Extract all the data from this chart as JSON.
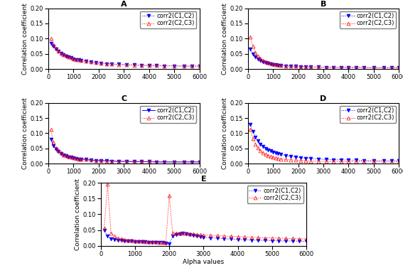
{
  "title_A": "A",
  "title_B": "B",
  "title_C": "C",
  "title_D": "D",
  "title_E": "E",
  "ylabel": "Correlation coefficient",
  "xlabel": "Alpha values",
  "legend1": "corr2(C1,C2)",
  "legend2": "corr2(C2,C3)",
  "xlim": [
    0,
    6000
  ],
  "ylim": [
    0,
    0.2
  ],
  "alpha_values": [
    100,
    200,
    300,
    400,
    500,
    600,
    700,
    800,
    900,
    1000,
    1100,
    1200,
    1300,
    1500,
    1700,
    1900,
    2100,
    2300,
    2500,
    2800,
    3100,
    3400,
    3700,
    4000,
    4300,
    4600,
    5000,
    5400,
    5700,
    6000
  ],
  "A_c12": [
    0.085,
    0.075,
    0.065,
    0.058,
    0.052,
    0.047,
    0.043,
    0.04,
    0.037,
    0.034,
    0.032,
    0.03,
    0.028,
    0.026,
    0.023,
    0.021,
    0.019,
    0.018,
    0.017,
    0.016,
    0.015,
    0.014,
    0.013,
    0.012,
    0.012,
    0.011,
    0.011,
    0.01,
    0.01,
    0.01
  ],
  "A_c23": [
    0.1,
    0.08,
    0.068,
    0.06,
    0.053,
    0.048,
    0.044,
    0.04,
    0.037,
    0.034,
    0.032,
    0.03,
    0.028,
    0.026,
    0.023,
    0.021,
    0.019,
    0.018,
    0.017,
    0.015,
    0.014,
    0.013,
    0.013,
    0.012,
    0.012,
    0.011,
    0.011,
    0.01,
    0.01,
    0.01
  ],
  "B_c12": [
    0.065,
    0.05,
    0.04,
    0.033,
    0.028,
    0.024,
    0.021,
    0.019,
    0.017,
    0.015,
    0.014,
    0.013,
    0.012,
    0.011,
    0.01,
    0.009,
    0.008,
    0.008,
    0.007,
    0.007,
    0.006,
    0.006,
    0.006,
    0.006,
    0.006,
    0.006,
    0.005,
    0.005,
    0.005,
    0.005
  ],
  "B_c23": [
    0.105,
    0.075,
    0.055,
    0.043,
    0.035,
    0.029,
    0.025,
    0.022,
    0.019,
    0.017,
    0.015,
    0.014,
    0.013,
    0.011,
    0.01,
    0.009,
    0.008,
    0.008,
    0.007,
    0.007,
    0.006,
    0.006,
    0.006,
    0.006,
    0.006,
    0.006,
    0.005,
    0.005,
    0.005,
    0.005
  ],
  "C_c12": [
    0.08,
    0.06,
    0.048,
    0.04,
    0.034,
    0.029,
    0.026,
    0.023,
    0.021,
    0.019,
    0.018,
    0.016,
    0.015,
    0.014,
    0.012,
    0.011,
    0.01,
    0.01,
    0.009,
    0.008,
    0.008,
    0.007,
    0.007,
    0.007,
    0.006,
    0.006,
    0.006,
    0.006,
    0.006,
    0.006
  ],
  "C_c23": [
    0.112,
    0.07,
    0.052,
    0.042,
    0.035,
    0.03,
    0.027,
    0.024,
    0.021,
    0.019,
    0.018,
    0.016,
    0.015,
    0.014,
    0.012,
    0.011,
    0.01,
    0.009,
    0.009,
    0.008,
    0.008,
    0.007,
    0.007,
    0.007,
    0.006,
    0.006,
    0.006,
    0.006,
    0.006,
    0.006
  ],
  "D_c12": [
    0.13,
    0.105,
    0.088,
    0.075,
    0.065,
    0.057,
    0.051,
    0.046,
    0.042,
    0.038,
    0.035,
    0.033,
    0.031,
    0.027,
    0.024,
    0.022,
    0.02,
    0.018,
    0.017,
    0.016,
    0.014,
    0.013,
    0.013,
    0.012,
    0.012,
    0.011,
    0.011,
    0.01,
    0.01,
    0.01
  ],
  "D_c23": [
    0.112,
    0.082,
    0.065,
    0.052,
    0.043,
    0.036,
    0.031,
    0.027,
    0.024,
    0.021,
    0.019,
    0.018,
    0.016,
    0.014,
    0.013,
    0.012,
    0.011,
    0.01,
    0.009,
    0.009,
    0.008,
    0.008,
    0.007,
    0.007,
    0.007,
    0.007,
    0.007,
    0.006,
    0.006,
    0.006
  ],
  "E_alpha": [
    100,
    200,
    300,
    400,
    500,
    600,
    700,
    800,
    900,
    1000,
    1100,
    1200,
    1300,
    1400,
    1500,
    1600,
    1700,
    1800,
    1900,
    2000,
    2100,
    2200,
    2300,
    2400,
    2500,
    2600,
    2700,
    2800,
    2900,
    3000,
    3200,
    3400,
    3600,
    3800,
    4000,
    4200,
    4400,
    4600,
    4800,
    5000,
    5200,
    5400,
    5600,
    5800,
    6000
  ],
  "E_c12": [
    0.05,
    0.03,
    0.022,
    0.02,
    0.018,
    0.017,
    0.016,
    0.015,
    0.014,
    0.013,
    0.013,
    0.012,
    0.012,
    0.011,
    0.011,
    0.01,
    0.01,
    0.01,
    0.009,
    0.005,
    0.03,
    0.035,
    0.038,
    0.04,
    0.038,
    0.035,
    0.032,
    0.03,
    0.028,
    0.026,
    0.025,
    0.024,
    0.022,
    0.021,
    0.02,
    0.019,
    0.018,
    0.017,
    0.017,
    0.016,
    0.015,
    0.015,
    0.015,
    0.014,
    0.014
  ],
  "E_c23": [
    0.055,
    0.195,
    0.04,
    0.03,
    0.025,
    0.022,
    0.02,
    0.018,
    0.017,
    0.016,
    0.015,
    0.014,
    0.013,
    0.013,
    0.012,
    0.012,
    0.011,
    0.011,
    0.01,
    0.16,
    0.04,
    0.04,
    0.04,
    0.04,
    0.04,
    0.038,
    0.037,
    0.036,
    0.035,
    0.034,
    0.033,
    0.032,
    0.031,
    0.03,
    0.029,
    0.028,
    0.027,
    0.026,
    0.025,
    0.025,
    0.024,
    0.023,
    0.023,
    0.022,
    0.022
  ],
  "color_c12": "#0000FF",
  "color_c23": "#FF0000",
  "marker_c12": "v",
  "marker_c23": "^",
  "markersize": 3.5,
  "tick_fontsize": 6,
  "label_fontsize": 6.5,
  "title_fontsize": 8,
  "legend_fontsize": 6
}
